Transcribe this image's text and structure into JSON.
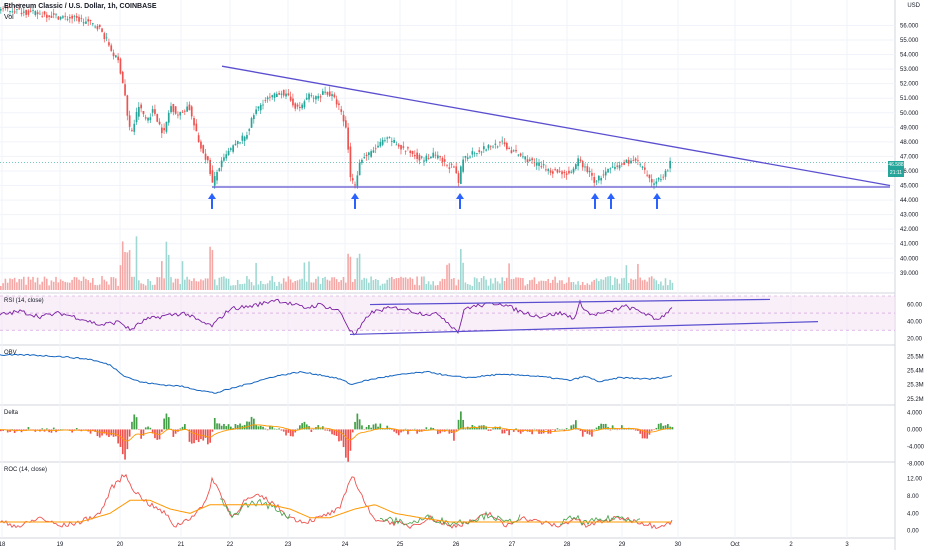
{
  "header": {
    "title": "Ethereum Classic / U.S. Dollar, 1h, COINBASE",
    "vol_label": "Vol",
    "currency": "USD",
    "last_price": "46.588",
    "countdown": "21:11"
  },
  "panes": {
    "rsi_label": "RSI (14, close)",
    "obv_label": "OBV",
    "delta_label": "Delta",
    "roc_label": "ROC (14, close)"
  },
  "colors": {
    "up": "#26a69a",
    "down": "#ef5350",
    "trendline": "#5b4fcf",
    "rsi": "#7b1fa2",
    "obv": "#1565c0",
    "roc": "#ef5350",
    "roc_ma": "#ff9800",
    "arrow": "#2962ff"
  },
  "chart_data": [
    {
      "type": "candlestick",
      "price_axis": [
        "56.000",
        "55.000",
        "54.000",
        "53.000",
        "52.000",
        "51.000",
        "50.000",
        "49.000",
        "48.000",
        "47.000",
        "46.000",
        "45.000",
        "44.000",
        "43.000",
        "42.000",
        "41.000",
        "40.000",
        "39.000"
      ],
      "ylim": [
        38.3,
        57.2
      ],
      "x_labels": [
        "18",
        "19",
        "20",
        "21",
        "22",
        "23",
        "24",
        "25",
        "26",
        "27",
        "28",
        "29",
        "30",
        "Oct",
        "2",
        "3"
      ],
      "price_path": [
        [
          0,
          57.2
        ],
        [
          20,
          57.0
        ],
        [
          40,
          56.8
        ],
        [
          60,
          56.6
        ],
        [
          75,
          56.5
        ],
        [
          90,
          56.2
        ],
        [
          100,
          55.9
        ],
        [
          108,
          55.0
        ],
        [
          115,
          54.0
        ],
        [
          120,
          53.5
        ],
        [
          126,
          51.5
        ],
        [
          130,
          49.0
        ],
        [
          134,
          48.8
        ],
        [
          140,
          50.5
        ],
        [
          148,
          49.5
        ],
        [
          155,
          50.2
        ],
        [
          165,
          48.5
        ],
        [
          172,
          50.5
        ],
        [
          180,
          49.8
        ],
        [
          190,
          50.5
        ],
        [
          200,
          48.0
        ],
        [
          210,
          46.5
        ],
        [
          214,
          45.1
        ],
        [
          220,
          46.2
        ],
        [
          230,
          47.3
        ],
        [
          240,
          48.0
        ],
        [
          248,
          48.5
        ],
        [
          256,
          50.0
        ],
        [
          265,
          50.8
        ],
        [
          275,
          51.1
        ],
        [
          282,
          51.5
        ],
        [
          290,
          51.0
        ],
        [
          300,
          50.2
        ],
        [
          310,
          51.2
        ],
        [
          318,
          51.0
        ],
        [
          326,
          51.5
        ],
        [
          334,
          51.1
        ],
        [
          340,
          50.5
        ],
        [
          348,
          48.8
        ],
        [
          352,
          45.6
        ],
        [
          356,
          45.0
        ],
        [
          362,
          46.8
        ],
        [
          372,
          47.2
        ],
        [
          384,
          48.0
        ],
        [
          392,
          48.2
        ],
        [
          402,
          47.6
        ],
        [
          414,
          47.2
        ],
        [
          424,
          46.8
        ],
        [
          436,
          47.1
        ],
        [
          446,
          46.5
        ],
        [
          455,
          46.2
        ],
        [
          460,
          45.2
        ],
        [
          464,
          46.8
        ],
        [
          474,
          47.3
        ],
        [
          484,
          47.5
        ],
        [
          496,
          47.8
        ],
        [
          504,
          47.9
        ],
        [
          514,
          47.3
        ],
        [
          524,
          47.0
        ],
        [
          534,
          46.6
        ],
        [
          544,
          46.3
        ],
        [
          554,
          46.0
        ],
        [
          564,
          45.9
        ],
        [
          574,
          45.8
        ],
        [
          580,
          46.8
        ],
        [
          584,
          46.4
        ],
        [
          592,
          45.8
        ],
        [
          596,
          45.3
        ],
        [
          604,
          45.7
        ],
        [
          612,
          46.1
        ],
        [
          620,
          46.3
        ],
        [
          630,
          46.7
        ],
        [
          640,
          46.6
        ],
        [
          648,
          45.7
        ],
        [
          652,
          45.2
        ],
        [
          660,
          45.4
        ],
        [
          668,
          46.0
        ],
        [
          672,
          46.59
        ]
      ],
      "triangle_top": {
        "from": [
          222,
          53.2
        ],
        "to": [
          890,
          45.0
        ]
      },
      "support": {
        "from": [
          212,
          44.9
        ],
        "to": [
          890,
          44.9
        ]
      },
      "support_touches_x": [
        212,
        355,
        460,
        595,
        611,
        657
      ]
    },
    {
      "type": "bar",
      "name": "Vol",
      "note": "volume pane, no scale printed"
    },
    {
      "type": "line",
      "name": "RSI (14, close)",
      "y_ticks": [
        "60.00",
        "40.00",
        "20.00"
      ],
      "ylim": [
        15,
        70
      ],
      "bands": [
        70,
        50,
        30
      ],
      "path": [
        [
          0,
          48
        ],
        [
          20,
          52
        ],
        [
          40,
          46
        ],
        [
          60,
          50
        ],
        [
          80,
          44
        ],
        [
          100,
          36
        ],
        [
          120,
          40
        ],
        [
          130,
          30
        ],
        [
          145,
          42
        ],
        [
          165,
          47
        ],
        [
          185,
          50
        ],
        [
          200,
          40
        ],
        [
          212,
          35
        ],
        [
          230,
          55
        ],
        [
          250,
          58
        ],
        [
          265,
          62
        ],
        [
          275,
          66
        ],
        [
          290,
          61
        ],
        [
          305,
          56
        ],
        [
          320,
          60
        ],
        [
          340,
          52
        ],
        [
          350,
          30
        ],
        [
          355,
          24
        ],
        [
          370,
          50
        ],
        [
          385,
          55
        ],
        [
          400,
          56
        ],
        [
          420,
          50
        ],
        [
          440,
          48
        ],
        [
          458,
          28
        ],
        [
          465,
          56
        ],
        [
          480,
          59
        ],
        [
          500,
          62
        ],
        [
          520,
          52
        ],
        [
          540,
          46
        ],
        [
          560,
          50
        ],
        [
          575,
          44
        ],
        [
          580,
          62
        ],
        [
          590,
          48
        ],
        [
          605,
          50
        ],
        [
          625,
          58
        ],
        [
          645,
          50
        ],
        [
          655,
          42
        ],
        [
          665,
          48
        ],
        [
          672,
          58
        ]
      ],
      "upper_channel": {
        "from": [
          370,
          60
        ],
        "to": [
          770,
          66
        ]
      },
      "lower_channel": {
        "from": [
          350,
          25
        ],
        "to": [
          818,
          40
        ]
      }
    },
    {
      "type": "line",
      "name": "OBV",
      "y_ticks": [
        "25.5M",
        "25.4M",
        "25.3M",
        "25.2M"
      ],
      "ylim": [
        25.17,
        25.56
      ],
      "path": [
        [
          0,
          25.51
        ],
        [
          30,
          25.51
        ],
        [
          60,
          25.5
        ],
        [
          90,
          25.48
        ],
        [
          110,
          25.44
        ],
        [
          125,
          25.36
        ],
        [
          140,
          25.32
        ],
        [
          160,
          25.3
        ],
        [
          180,
          25.29
        ],
        [
          200,
          25.26
        ],
        [
          215,
          25.24
        ],
        [
          235,
          25.28
        ],
        [
          255,
          25.32
        ],
        [
          275,
          25.36
        ],
        [
          300,
          25.39
        ],
        [
          320,
          25.37
        ],
        [
          340,
          25.34
        ],
        [
          352,
          25.3
        ],
        [
          360,
          25.32
        ],
        [
          380,
          25.35
        ],
        [
          410,
          25.38
        ],
        [
          430,
          25.39
        ],
        [
          450,
          25.36
        ],
        [
          470,
          25.35
        ],
        [
          495,
          25.37
        ],
        [
          520,
          25.37
        ],
        [
          550,
          25.35
        ],
        [
          570,
          25.33
        ],
        [
          585,
          25.36
        ],
        [
          600,
          25.32
        ],
        [
          620,
          25.35
        ],
        [
          650,
          25.34
        ],
        [
          672,
          25.36
        ]
      ]
    },
    {
      "type": "bar",
      "name": "Delta",
      "y_ticks": [
        "4.000",
        "0.000",
        "-4.000",
        "-8.000"
      ],
      "ylim": [
        -9,
        5
      ]
    },
    {
      "type": "line",
      "name": "ROC (14, close)",
      "y_ticks": [
        "12.00",
        "8.00",
        "4.00",
        "0.00"
      ],
      "ylim": [
        -1,
        14
      ],
      "path": [
        [
          0,
          2
        ],
        [
          20,
          1
        ],
        [
          40,
          3
        ],
        [
          60,
          1
        ],
        [
          80,
          2
        ],
        [
          100,
          4
        ],
        [
          112,
          10
        ],
        [
          125,
          13
        ],
        [
          135,
          9
        ],
        [
          150,
          6
        ],
        [
          165,
          4
        ],
        [
          175,
          1
        ],
        [
          190,
          3
        ],
        [
          205,
          6
        ],
        [
          212,
          12
        ],
        [
          222,
          8
        ],
        [
          232,
          3
        ],
        [
          245,
          7
        ],
        [
          260,
          8
        ],
        [
          275,
          6
        ],
        [
          290,
          3
        ],
        [
          305,
          2
        ],
        [
          320,
          3
        ],
        [
          340,
          5
        ],
        [
          352,
          13
        ],
        [
          362,
          8
        ],
        [
          372,
          3
        ],
        [
          390,
          2
        ],
        [
          410,
          1
        ],
        [
          430,
          3
        ],
        [
          450,
          1
        ],
        [
          470,
          2
        ],
        [
          490,
          4
        ],
        [
          505,
          1
        ],
        [
          520,
          3
        ],
        [
          540,
          2
        ],
        [
          560,
          1
        ],
        [
          575,
          3
        ],
        [
          585,
          1
        ],
        [
          600,
          2
        ],
        [
          620,
          3
        ],
        [
          640,
          2
        ],
        [
          655,
          1
        ],
        [
          672,
          2
        ]
      ],
      "ma_path": [
        [
          0,
          2
        ],
        [
          40,
          2
        ],
        [
          80,
          2
        ],
        [
          110,
          4
        ],
        [
          130,
          7
        ],
        [
          150,
          7
        ],
        [
          170,
          5
        ],
        [
          190,
          4
        ],
        [
          210,
          6
        ],
        [
          230,
          6
        ],
        [
          250,
          6
        ],
        [
          270,
          6
        ],
        [
          290,
          5
        ],
        [
          310,
          3
        ],
        [
          330,
          3
        ],
        [
          355,
          5
        ],
        [
          375,
          6
        ],
        [
          395,
          4
        ],
        [
          420,
          3
        ],
        [
          450,
          2
        ],
        [
          480,
          2
        ],
        [
          510,
          2
        ],
        [
          540,
          2
        ],
        [
          570,
          2
        ],
        [
          600,
          2
        ],
        [
          630,
          2
        ],
        [
          672,
          2
        ]
      ]
    }
  ]
}
